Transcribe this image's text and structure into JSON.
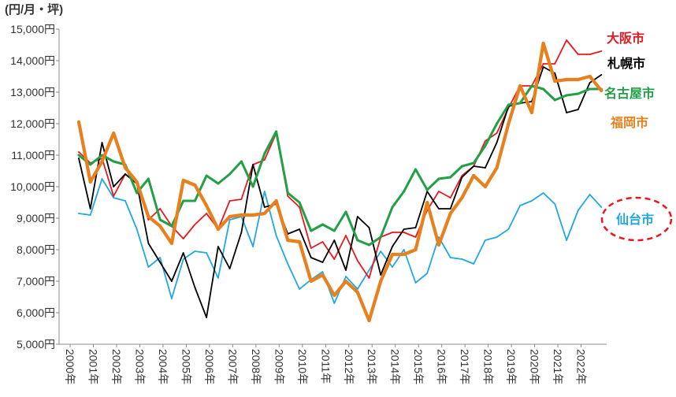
{
  "chart_data": {
    "type": "line",
    "ylabel": "(円/月・坪)",
    "xlabel": "",
    "ylim": [
      5000,
      15000
    ],
    "yticks": [
      15000,
      14000,
      13000,
      12000,
      11000,
      10000,
      9000,
      8000,
      7000,
      6000,
      5000
    ],
    "ytick_labels": [
      "15,000円",
      "14,000円",
      "13,000円",
      "12,000円",
      "11,000円",
      "10,000円",
      "9,000円",
      "8,000円",
      "7,000円",
      "6,000円",
      "5,000円"
    ],
    "xticks": [
      2000,
      2001,
      2002,
      2003,
      2004,
      2005,
      2006,
      2007,
      2008,
      2009,
      2010,
      2011,
      2012,
      2013,
      2014,
      2015,
      2016,
      2017,
      2018,
      2019,
      2020,
      2021,
      2022
    ],
    "xtick_labels": [
      "2000年",
      "2001年",
      "2002年",
      "2003年",
      "2004年",
      "2005年",
      "2006年",
      "2007年",
      "2008年",
      "2009年",
      "2010年",
      "2011年",
      "2012年",
      "2013年",
      "2014年",
      "2015年",
      "2016年",
      "2017年",
      "2018年",
      "2019年",
      "2020年",
      "2021年",
      "2022年"
    ],
    "grid": false,
    "legend": "right",
    "x": [
      2000,
      2000.5,
      2001,
      2001.5,
      2002,
      2002.5,
      2003,
      2003.5,
      2004,
      2004.5,
      2005,
      2005.5,
      2006,
      2006.5,
      2007,
      2007.5,
      2008,
      2008.5,
      2009,
      2009.5,
      2010,
      2010.5,
      2011,
      2011.5,
      2012,
      2012.5,
      2013,
      2013.5,
      2014,
      2014.5,
      2015,
      2015.5,
      2016,
      2016.5,
      2017,
      2017.5,
      2018,
      2018.5,
      2019,
      2019.5,
      2020,
      2020.5,
      2021,
      2021.5,
      2022,
      2022.5
    ],
    "series": [
      {
        "name": "大阪市",
        "color": "#e8191e",
        "values": [
          11100,
          10750,
          10900,
          9700,
          10400,
          10100,
          8950,
          9300,
          8750,
          8350,
          8800,
          9150,
          8650,
          9550,
          9600,
          10700,
          10850,
          11700,
          9700,
          9350,
          8050,
          8250,
          7700,
          8450,
          7650,
          7100,
          8400,
          8550,
          8550,
          8400,
          9250,
          9850,
          9650,
          10350,
          10650,
          11450,
          11700,
          12500,
          13200,
          13200,
          13900,
          13900,
          14650,
          14200,
          14200,
          14300
        ]
      },
      {
        "name": "札幌市",
        "color": "#000000",
        "values": [
          10900,
          9300,
          11400,
          10000,
          10400,
          10100,
          8200,
          7600,
          7000,
          7900,
          6800,
          5850,
          8100,
          7400,
          8550,
          10700,
          9350,
          9450,
          8500,
          8650,
          7750,
          7600,
          8300,
          7350,
          9050,
          8700,
          7200,
          8100,
          8650,
          8700,
          9850,
          9300,
          9300,
          10300,
          10650,
          10600,
          11400,
          12550,
          12650,
          12700,
          13800,
          13600,
          12350,
          12450,
          13300,
          13550
        ]
      },
      {
        "name": "名古屋市",
        "color": "#22a046",
        "values": [
          11000,
          10700,
          11000,
          10800,
          10700,
          9800,
          10250,
          8950,
          8750,
          9550,
          9550,
          10350,
          10100,
          10400,
          10800,
          10000,
          11050,
          11750,
          9800,
          9500,
          8600,
          8800,
          8600,
          9200,
          8300,
          8150,
          8400,
          9350,
          9850,
          10550,
          9900,
          10250,
          10300,
          10650,
          10750,
          11300,
          12000,
          12600,
          12650,
          13200,
          13100,
          12750,
          12900,
          12950,
          13100,
          13100
        ]
      },
      {
        "name": "福岡市",
        "color": "#e8801e",
        "values": [
          12050,
          10150,
          10800,
          11700,
          10600,
          10150,
          9050,
          8750,
          8200,
          10200,
          10050,
          9400,
          8650,
          9050,
          9100,
          9100,
          9150,
          9550,
          8300,
          8250,
          7000,
          7200,
          6550,
          7000,
          6650,
          5750,
          7000,
          7850,
          7850,
          8000,
          9500,
          8150,
          9150,
          9650,
          10350,
          10000,
          10600,
          12000,
          13200,
          12350,
          14550,
          13350,
          13400,
          13400,
          13500,
          13050
        ]
      },
      {
        "name": "仙台市",
        "color": "#1fa8e4",
        "values": [
          9150,
          9100,
          10250,
          9650,
          9550,
          8650,
          7450,
          7750,
          6450,
          7700,
          7950,
          7900,
          7100,
          8950,
          9050,
          8100,
          9850,
          8450,
          7550,
          6750,
          7050,
          7300,
          6300,
          7150,
          6750,
          7350,
          7950,
          7450,
          8000,
          6950,
          7250,
          8400,
          7750,
          7700,
          7550,
          8300,
          8400,
          8650,
          9400,
          9550,
          9800,
          9450,
          8300,
          9250,
          9750,
          9350
        ]
      }
    ]
  }
}
